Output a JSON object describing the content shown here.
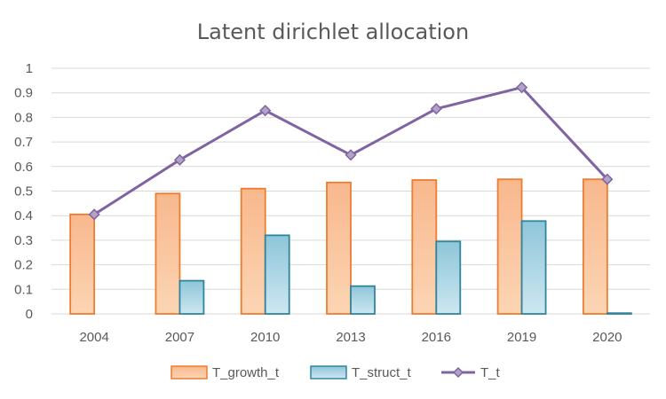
{
  "chart_data": {
    "type": "bar",
    "title": "Latent dirichlet allocation",
    "xlabel": "",
    "ylabel": "",
    "categories": [
      "2004",
      "2007",
      "2010",
      "2013",
      "2016",
      "2019",
      "2020"
    ],
    "ylim": [
      0,
      1
    ],
    "yticks": [
      "0",
      "0.1",
      "0.2",
      "0.3",
      "0.4",
      "0.5",
      "0.6",
      "0.7",
      "0.8",
      "0.9",
      "1"
    ],
    "grid": true,
    "legend_position": "bottom",
    "series": [
      {
        "name": "T_growth_t",
        "kind": "bar",
        "color": "#ed7d31",
        "fill_light": "#fcd5b4",
        "fill_dark": "#f8b88d",
        "values": [
          0.405,
          0.49,
          0.51,
          0.535,
          0.545,
          0.548,
          0.548
        ]
      },
      {
        "name": "T_struct_t",
        "kind": "bar",
        "color": "#31849b",
        "fill_light": "#cde7f0",
        "fill_dark": "#8ec6d9",
        "values": [
          0,
          0.135,
          0.32,
          0.113,
          0.295,
          0.378,
          0.003
        ]
      },
      {
        "name": "T_t",
        "kind": "line",
        "color": "#8064a2",
        "marker_fill": "#b3a2c7",
        "values": [
          0.405,
          0.627,
          0.828,
          0.647,
          0.835,
          0.922,
          0.548
        ]
      }
    ]
  }
}
